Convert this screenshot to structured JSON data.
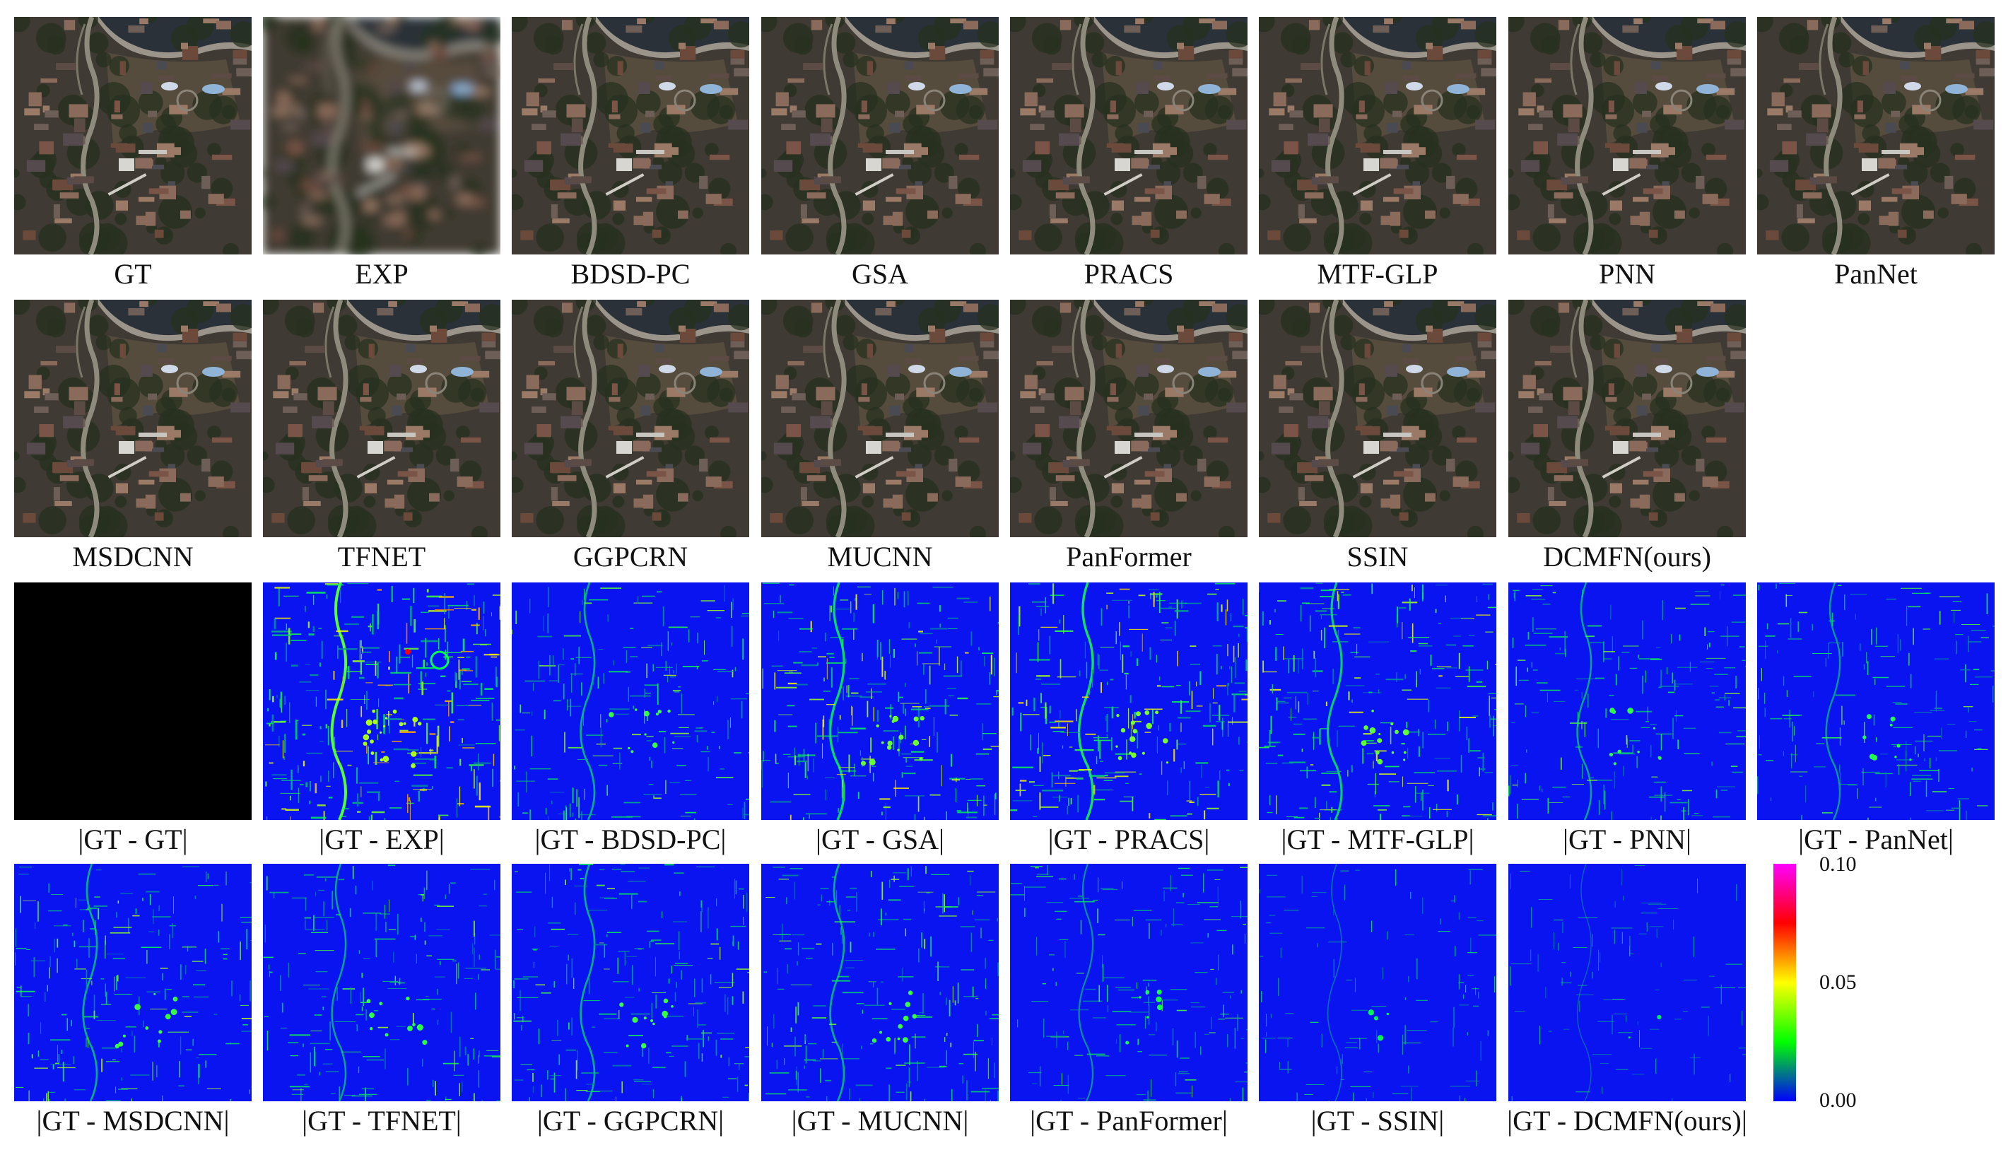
{
  "rows": [
    {
      "kind": "satellite",
      "panels": [
        {
          "caption": "GT",
          "blur": 0
        },
        {
          "caption": "EXP",
          "blur": 7
        },
        {
          "caption": "BDSD-PC",
          "blur": 0
        },
        {
          "caption": "GSA",
          "blur": 0
        },
        {
          "caption": "PRACS",
          "blur": 0
        },
        {
          "caption": "MTF-GLP",
          "blur": 0
        },
        {
          "caption": "PNN",
          "blur": 0
        },
        {
          "caption": "PanNet",
          "blur": 0
        }
      ]
    },
    {
      "kind": "satellite",
      "panels": [
        {
          "caption": "MSDCNN",
          "blur": 0
        },
        {
          "caption": "TFNET",
          "blur": 0
        },
        {
          "caption": "GGPCRN",
          "blur": 0
        },
        {
          "caption": "MUCNN",
          "blur": 0
        },
        {
          "caption": "PanFormer",
          "blur": 0
        },
        {
          "caption": "SSIN",
          "blur": 0
        },
        {
          "caption": "DCMFN(ours)",
          "blur": 0
        }
      ]
    },
    {
      "kind": "error",
      "panels": [
        {
          "caption": "|GT - GT|",
          "error_level": 0.0
        },
        {
          "caption": "|GT - EXP|",
          "error_level": 1.0
        },
        {
          "caption": "|GT - BDSD-PC|",
          "error_level": 0.55
        },
        {
          "caption": "|GT - GSA|",
          "error_level": 0.75
        },
        {
          "caption": "|GT - PRACS|",
          "error_level": 0.8
        },
        {
          "caption": "|GT - MTF-GLP|",
          "error_level": 0.7
        },
        {
          "caption": "|GT - PNN|",
          "error_level": 0.5
        },
        {
          "caption": "|GT - PanNet|",
          "error_level": 0.45
        }
      ]
    },
    {
      "kind": "error",
      "panels": [
        {
          "caption": "|GT - MSDCNN|",
          "error_level": 0.55
        },
        {
          "caption": "|GT - TFNET|",
          "error_level": 0.5
        },
        {
          "caption": "|GT - GGPCRN|",
          "error_level": 0.55
        },
        {
          "caption": "|GT - MUCNN|",
          "error_level": 0.55
        },
        {
          "caption": "|GT - PanFormer|",
          "error_level": 0.4
        },
        {
          "caption": "|GT - SSIN|",
          "error_level": 0.2
        },
        {
          "caption": "|GT - DCMFN(ours)|",
          "error_level": 0.12
        }
      ]
    }
  ],
  "colorbar": {
    "ticks": [
      "0.10",
      "0.05",
      "0.00"
    ],
    "colors": [
      "#ff00ff",
      "#ff0000",
      "#ffff00",
      "#00ff00",
      "#0000ff"
    ]
  }
}
